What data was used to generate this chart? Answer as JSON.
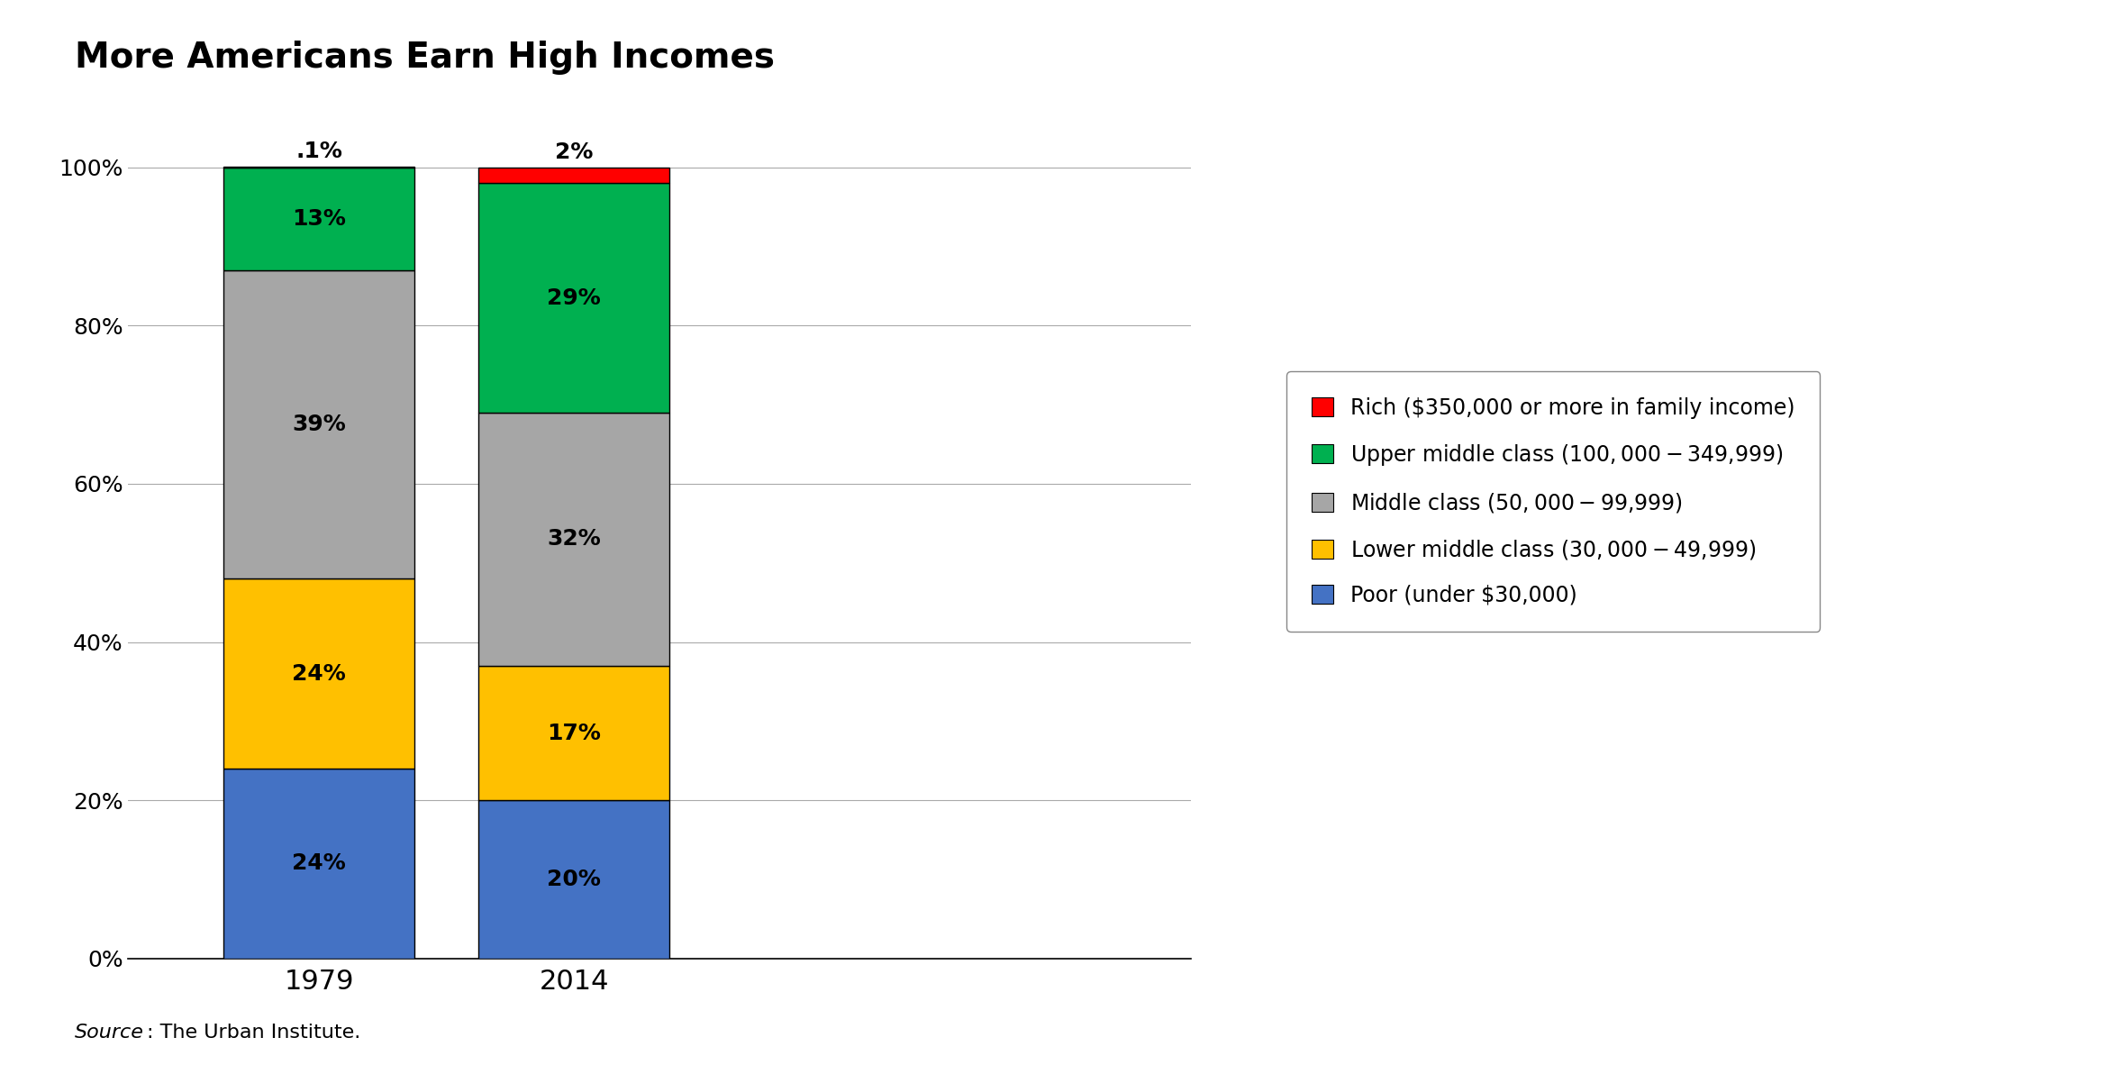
{
  "title": "More Americans Earn High Incomes",
  "years": [
    "1979",
    "2014"
  ],
  "categories": [
    "Poor",
    "Lower middle class",
    "Middle class",
    "Upper middle class",
    "Rich"
  ],
  "colors": [
    "#4472C4",
    "#FFC000",
    "#A6A6A6",
    "#00B050",
    "#FF0000"
  ],
  "values_1979": [
    24,
    24,
    39,
    13,
    0.1
  ],
  "values_2014": [
    20,
    17,
    32,
    29,
    2
  ],
  "labels_1979": [
    "24%",
    "24%",
    "39%",
    "13%",
    ".1%"
  ],
  "labels_2014": [
    "20%",
    "17%",
    "32%",
    "29%",
    "2%"
  ],
  "legend_labels": [
    "Rich ($350,000 or more in family income)",
    "Upper middle class ($100,000-$349,999)",
    "Middle class ($50,000-$99,999)",
    "Lower middle class ($30,000-$49,999)",
    "Poor (under $30,000)"
  ],
  "legend_colors": [
    "#FF0000",
    "#00B050",
    "#A6A6A6",
    "#FFC000",
    "#4472C4"
  ],
  "background_color": "#FFFFFF",
  "bar_width": 0.18,
  "x_positions": [
    0.18,
    0.42
  ],
  "xlim": [
    0.0,
    1.0
  ],
  "ylim": [
    0,
    105
  ],
  "yticks": [
    0,
    20,
    40,
    60,
    80,
    100
  ],
  "ytick_labels": [
    "0%",
    "20%",
    "40%",
    "60%",
    "80%",
    "100%"
  ],
  "title_fontsize": 28,
  "label_fontsize": 18,
  "tick_fontsize": 18,
  "legend_fontsize": 17,
  "source_italic": "Source",
  "source_rest": ": The Urban Institute.",
  "source_fontsize": 16
}
